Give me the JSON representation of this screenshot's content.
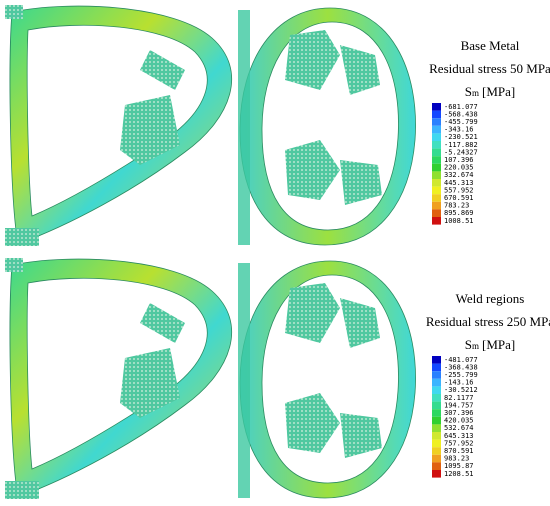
{
  "panels": [
    {
      "title": "Base Metal",
      "subtitle": "Residual stress 50 MPa",
      "symbol": "S",
      "subscript": "m",
      "unit": "[MPa]",
      "levels": [
        -681.077,
        -568.438,
        -455.799,
        -343.16,
        -230.521,
        -117.882,
        -5.24327,
        107.396,
        220.035,
        332.674,
        445.313,
        557.952,
        670.591,
        783.23,
        895.869,
        1008.51
      ],
      "colors": [
        "#0000c0",
        "#1448ff",
        "#2a80ff",
        "#3cb4ff",
        "#40d8f0",
        "#40e0c0",
        "#34dc90",
        "#2cd860",
        "#30d030",
        "#90e030",
        "#d0e830",
        "#f0f020",
        "#f0d020",
        "#f0a020",
        "#e06010",
        "#d01010"
      ]
    },
    {
      "title": "Weld regions",
      "subtitle": "Residual stress 250 MPa",
      "symbol": "S",
      "subscript": "m",
      "unit": "[MPa]",
      "levels": [
        -481.077,
        -368.438,
        -255.799,
        -143.16,
        -30.5212,
        82.1177,
        194.757,
        307.396,
        420.035,
        532.674,
        645.313,
        757.952,
        870.591,
        983.23,
        1095.87,
        1208.51
      ],
      "colors": [
        "#0000c0",
        "#1448ff",
        "#2a80ff",
        "#3cb4ff",
        "#40d8f0",
        "#40e0c0",
        "#34dc90",
        "#2cd860",
        "#30d030",
        "#90e030",
        "#d0e830",
        "#f0f020",
        "#f0d020",
        "#f0a020",
        "#e06010",
        "#d01010"
      ]
    }
  ]
}
